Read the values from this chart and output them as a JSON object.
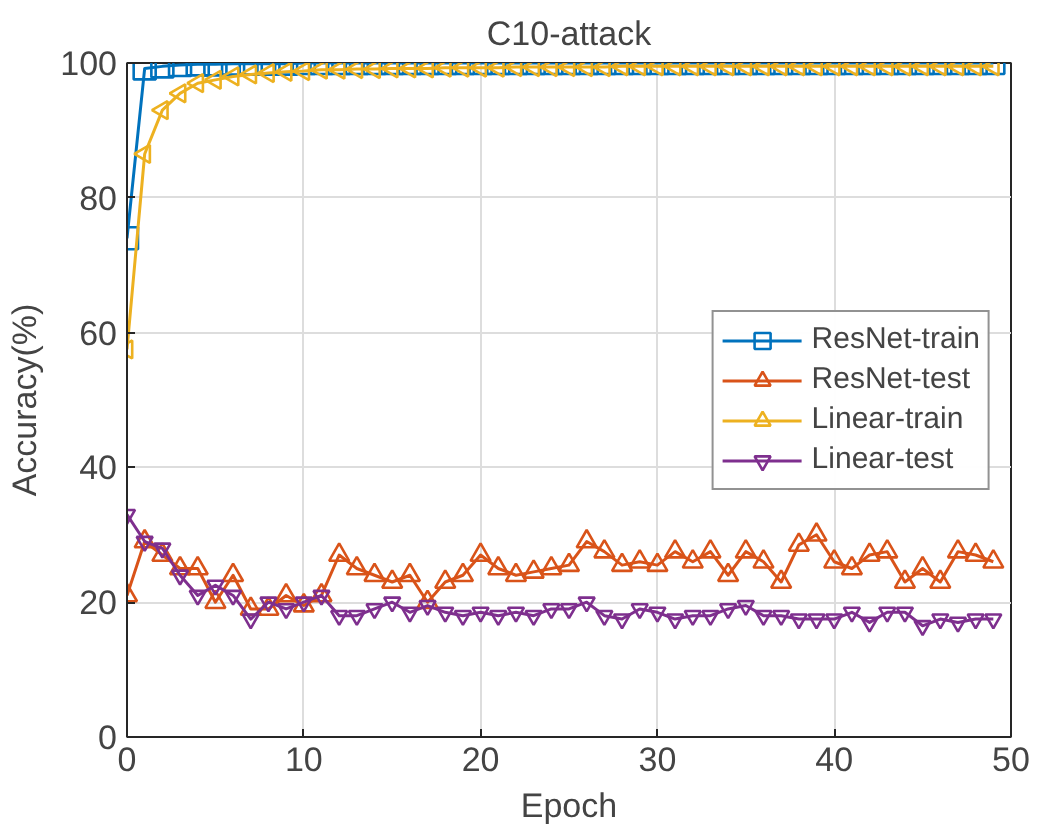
{
  "chart_data": {
    "type": "line",
    "title": "C10-attack",
    "xlabel": "Epoch",
    "ylabel": "Accuracy(%)",
    "x": [
      0,
      1,
      2,
      3,
      4,
      5,
      6,
      7,
      8,
      9,
      10,
      11,
      12,
      13,
      14,
      15,
      16,
      17,
      18,
      19,
      20,
      21,
      22,
      23,
      24,
      25,
      26,
      27,
      28,
      29,
      30,
      31,
      32,
      33,
      34,
      35,
      36,
      37,
      38,
      39,
      40,
      41,
      42,
      43,
      44,
      45,
      46,
      47,
      48,
      49
    ],
    "series": [
      {
        "name": "ResNet-train",
        "color": "#0072bd",
        "marker": "square",
        "values": [
          74,
          99.2,
          99.5,
          99.7,
          99.8,
          99.8,
          99.9,
          99.9,
          99.9,
          99.9,
          100,
          100,
          100,
          100,
          100,
          100,
          100,
          100,
          100,
          100,
          100,
          100,
          100,
          100,
          100,
          100,
          100,
          100,
          100,
          100,
          100,
          100,
          100,
          100,
          100,
          100,
          100,
          100,
          100,
          100,
          100,
          100,
          100,
          100,
          100,
          100,
          100,
          100,
          100,
          100
        ]
      },
      {
        "name": "ResNet-test",
        "color": "#d95319",
        "marker": "triangle",
        "values": [
          21,
          29,
          27,
          25,
          25,
          20,
          24,
          19,
          19,
          21,
          19.5,
          21,
          27,
          25,
          24,
          23,
          24,
          20,
          23,
          24,
          27,
          25,
          24,
          24.5,
          25,
          25.5,
          29,
          27.5,
          25.5,
          26,
          25.5,
          27.5,
          26,
          27.5,
          24,
          27.5,
          26,
          23,
          28.5,
          30,
          26,
          25,
          27,
          27.5,
          23,
          25,
          23,
          27.5,
          27,
          26
        ]
      },
      {
        "name": "Linear-train",
        "color": "#edb120",
        "marker": "triangle_left",
        "values": [
          57.5,
          86.5,
          93,
          95.5,
          97,
          97.5,
          98,
          98.3,
          98.5,
          98.7,
          98.8,
          99,
          99,
          99.1,
          99.1,
          99.2,
          99.2,
          99.2,
          99.3,
          99.3,
          99.3,
          99.3,
          99.4,
          99.4,
          99.4,
          99.4,
          99.4,
          99.4,
          99.5,
          99.5,
          99.5,
          99.5,
          99.5,
          99.5,
          99.5,
          99.5,
          99.5,
          99.5,
          99.5,
          99.5,
          99.5,
          99.5,
          99.5,
          99.5,
          99.5,
          99.5,
          99.5,
          99.5,
          99.5,
          99.5
        ]
      },
      {
        "name": "Linear-test",
        "color": "#7e2f8e",
        "marker": "triangle_down",
        "values": [
          33,
          29,
          28,
          24,
          21,
          22.5,
          21,
          17.5,
          20,
          19,
          20,
          21,
          18,
          18,
          19,
          20,
          18.5,
          19.5,
          18.5,
          18,
          18.5,
          18,
          18.5,
          18,
          19,
          19,
          20,
          18,
          17.5,
          19,
          18.5,
          17.5,
          18,
          18,
          19,
          19.5,
          18,
          18,
          17.5,
          17.5,
          17.5,
          18.5,
          17,
          18.5,
          18.5,
          16.5,
          17.5,
          17,
          17.5,
          17.5
        ]
      }
    ],
    "xlim": [
      0,
      50
    ],
    "ylim": [
      0,
      100
    ],
    "xticks": [
      0,
      10,
      20,
      30,
      40,
      50
    ],
    "yticks": [
      0,
      20,
      40,
      60,
      80,
      100
    ],
    "grid": true,
    "legend": "right",
    "line_style": "solid"
  }
}
